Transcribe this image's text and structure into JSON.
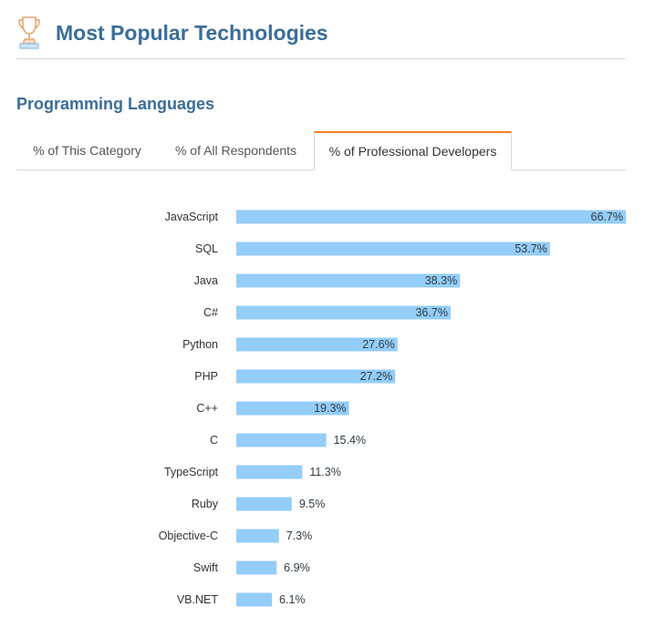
{
  "header": {
    "title": "Most Popular Technologies",
    "icon": "trophy-icon"
  },
  "section": {
    "title": "Programming Languages"
  },
  "tabs": [
    {
      "label": "% of This Category",
      "active": false
    },
    {
      "label": "% of All Respondents",
      "active": false
    },
    {
      "label": "% of Professional Developers",
      "active": true
    }
  ],
  "colors": {
    "bar": "#94cdf7",
    "accent": "#f48024",
    "heading": "#3b6d99"
  },
  "chart_data": {
    "type": "bar",
    "orientation": "horizontal",
    "categories": [
      "JavaScript",
      "SQL",
      "Java",
      "C#",
      "Python",
      "PHP",
      "C++",
      "C",
      "TypeScript",
      "Ruby",
      "Objective-C",
      "Swift",
      "VB.NET"
    ],
    "values": [
      66.7,
      53.7,
      38.3,
      36.7,
      27.6,
      27.2,
      19.3,
      15.4,
      11.3,
      9.5,
      7.3,
      6.9,
      6.1
    ],
    "value_labels": [
      "66.7%",
      "53.7%",
      "38.3%",
      "36.7%",
      "27.6%",
      "27.2%",
      "19.3%",
      "15.4%",
      "11.3%",
      "9.5%",
      "7.3%",
      "6.9%",
      "6.1%"
    ],
    "xlim": [
      0,
      66.7
    ],
    "grid": false,
    "legend": "none"
  }
}
